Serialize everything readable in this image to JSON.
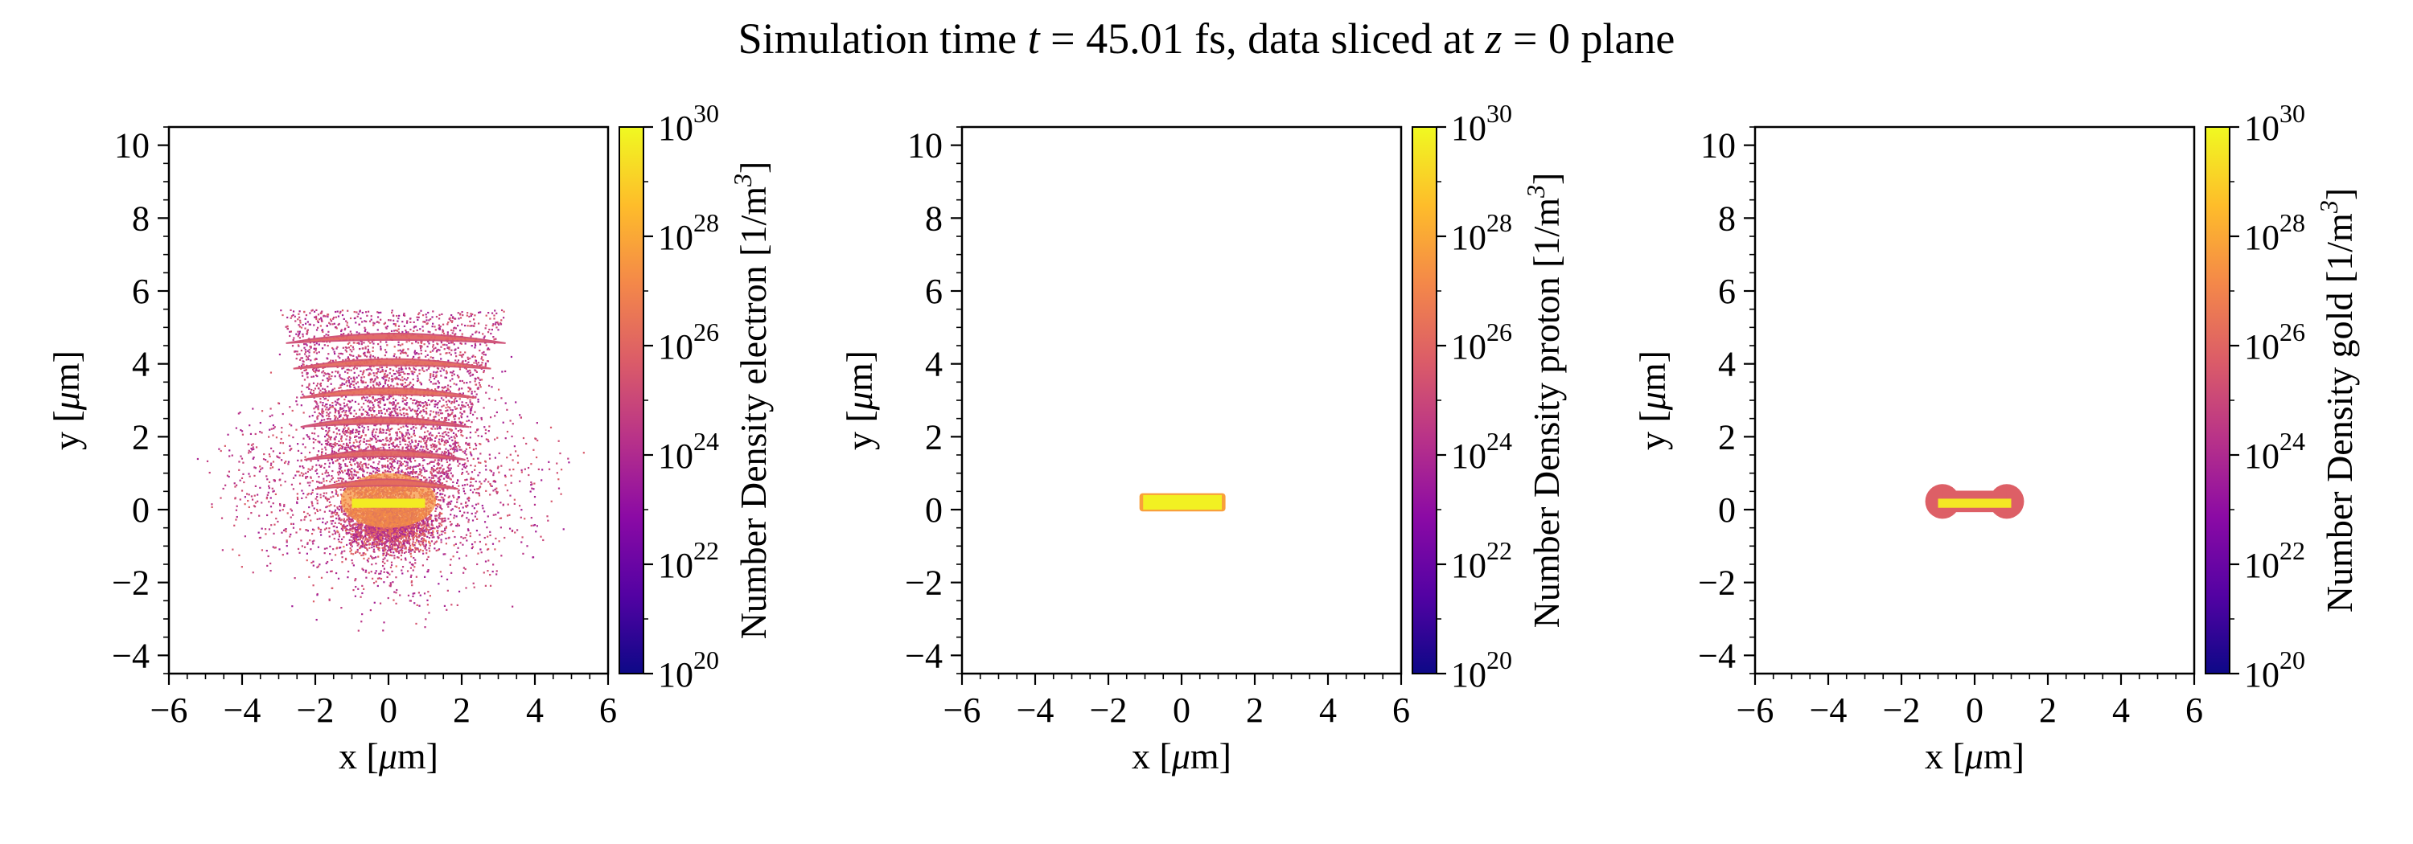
{
  "figure": {
    "title_prefix": "Simulation time ",
    "title_var_t": "t",
    "title_eq": " = ",
    "title_time": "45.01",
    "title_mid": " fs, data sliced at ",
    "title_var_z": "z",
    "title_eq2": " = 0 plane"
  },
  "colormap": {
    "name": "plasma",
    "stops": [
      "#0d0887",
      "#5302a3",
      "#8b0aa5",
      "#b83289",
      "#db5c68",
      "#f48849",
      "#febd2a",
      "#f0f921"
    ]
  },
  "chart_data": [
    {
      "type": "heatmap",
      "species": "electron",
      "xlabel_prefix": "x [",
      "xlabel_mu": "μ",
      "xlabel_suffix": "m]",
      "ylabel_prefix": "y [",
      "ylabel_mu": "μ",
      "ylabel_suffix": "m]",
      "xlim": [
        -6,
        6
      ],
      "ylim": [
        -4.5,
        10.5
      ],
      "xticks": [
        -6,
        -4,
        -2,
        0,
        2,
        4,
        6
      ],
      "xtick_labels": [
        "−6",
        "−4",
        "−2",
        "0",
        "2",
        "4",
        "6"
      ],
      "yticks": [
        -4,
        -2,
        0,
        2,
        4,
        6,
        8,
        10
      ],
      "ytick_labels": [
        "−4",
        "−2",
        "0",
        "2",
        "4",
        "6",
        "8",
        "10"
      ],
      "colorbar_label": "Number Density electron [1/m",
      "colorbar_label_sup": "3",
      "colorbar_label_end": "]",
      "colorbar_range_log10": [
        20,
        30
      ],
      "colorbar_ticks_log10": [
        20,
        22,
        24,
        26,
        28,
        30
      ],
      "colorbar_tick_base": "10",
      "colorbar_tick_exps": [
        "20",
        "22",
        "24",
        "26",
        "28",
        "30"
      ],
      "bar_region": {
        "x": [
          -1.0,
          1.0
        ],
        "y": [
          0.05,
          0.3
        ],
        "log10_density": 29.7
      },
      "core_region": {
        "x": [
          -1.3,
          1.3
        ],
        "y": [
          -0.5,
          1.0
        ],
        "log10_density": 27.5
      },
      "arcs": [
        {
          "y": 0.7,
          "x": [
            -2.0,
            1.9
          ],
          "log10_density": 26.2
        },
        {
          "y": 1.5,
          "x": [
            -2.3,
            2.1
          ],
          "log10_density": 26.0
        },
        {
          "y": 2.4,
          "x": [
            -2.4,
            2.2
          ],
          "log10_density": 26.0
        },
        {
          "y": 3.2,
          "x": [
            -2.4,
            2.4
          ],
          "log10_density": 26.3
        },
        {
          "y": 4.0,
          "x": [
            -2.6,
            2.8
          ],
          "log10_density": 26.2
        },
        {
          "y": 4.7,
          "x": [
            -2.8,
            3.2
          ],
          "log10_density": 26.0
        }
      ],
      "scatter_extent": {
        "x": [
          -5.8,
          5.6
        ],
        "y": [
          -3.7,
          5.6
        ],
        "log10_density_range": [
          23.5,
          25.8
        ]
      }
    },
    {
      "type": "heatmap",
      "species": "proton",
      "xlabel_prefix": "x [",
      "xlabel_mu": "μ",
      "xlabel_suffix": "m]",
      "ylabel_prefix": "y [",
      "ylabel_mu": "μ",
      "ylabel_suffix": "m]",
      "xlim": [
        -6,
        6
      ],
      "ylim": [
        -4.5,
        10.5
      ],
      "xticks": [
        -6,
        -4,
        -2,
        0,
        2,
        4,
        6
      ],
      "xtick_labels": [
        "−6",
        "−4",
        "−2",
        "0",
        "2",
        "4",
        "6"
      ],
      "yticks": [
        -4,
        -2,
        0,
        2,
        4,
        6,
        8,
        10
      ],
      "ytick_labels": [
        "−4",
        "−2",
        "0",
        "2",
        "4",
        "6",
        "8",
        "10"
      ],
      "colorbar_label": "Number Density proton [1/m",
      "colorbar_label_sup": "3",
      "colorbar_label_end": "]",
      "colorbar_range_log10": [
        20,
        30
      ],
      "colorbar_ticks_log10": [
        20,
        22,
        24,
        26,
        28,
        30
      ],
      "colorbar_tick_base": "10",
      "colorbar_tick_exps": [
        "20",
        "22",
        "24",
        "26",
        "28",
        "30"
      ],
      "bar_region": {
        "x": [
          -1.05,
          1.1
        ],
        "y": [
          0.0,
          0.4
        ],
        "log10_density": 29.8
      },
      "halo_region": {
        "x": [
          -1.15,
          1.2
        ],
        "y": [
          -0.05,
          0.45
        ],
        "log10_density": 27.8
      }
    },
    {
      "type": "heatmap",
      "species": "gold",
      "xlabel_prefix": "x [",
      "xlabel_mu": "μ",
      "xlabel_suffix": "m]",
      "ylabel_prefix": "y [",
      "ylabel_mu": "μ",
      "ylabel_suffix": "m]",
      "xlim": [
        -6,
        6
      ],
      "ylim": [
        -4.5,
        10.5
      ],
      "xticks": [
        -6,
        -4,
        -2,
        0,
        2,
        4,
        6
      ],
      "xtick_labels": [
        "−6",
        "−4",
        "−2",
        "0",
        "2",
        "4",
        "6"
      ],
      "yticks": [
        -4,
        -2,
        0,
        2,
        4,
        6,
        8,
        10
      ],
      "ytick_labels": [
        "−4",
        "−2",
        "0",
        "2",
        "4",
        "6",
        "8",
        "10"
      ],
      "colorbar_label": "Number Density gold [1/m",
      "colorbar_label_sup": "3",
      "colorbar_label_end": "]",
      "colorbar_range_log10": [
        20,
        30
      ],
      "colorbar_ticks_log10": [
        20,
        22,
        24,
        26,
        28,
        30
      ],
      "colorbar_tick_base": "10",
      "colorbar_tick_exps": [
        "20",
        "22",
        "24",
        "26",
        "28",
        "30"
      ],
      "bar_region": {
        "x": [
          -1.0,
          1.0
        ],
        "y": [
          0.05,
          0.3
        ],
        "log10_density": 29.6
      },
      "bone_region": {
        "x": [
          -1.35,
          1.35
        ],
        "y": [
          -0.25,
          0.7
        ],
        "log10_density": 25.8
      }
    }
  ]
}
